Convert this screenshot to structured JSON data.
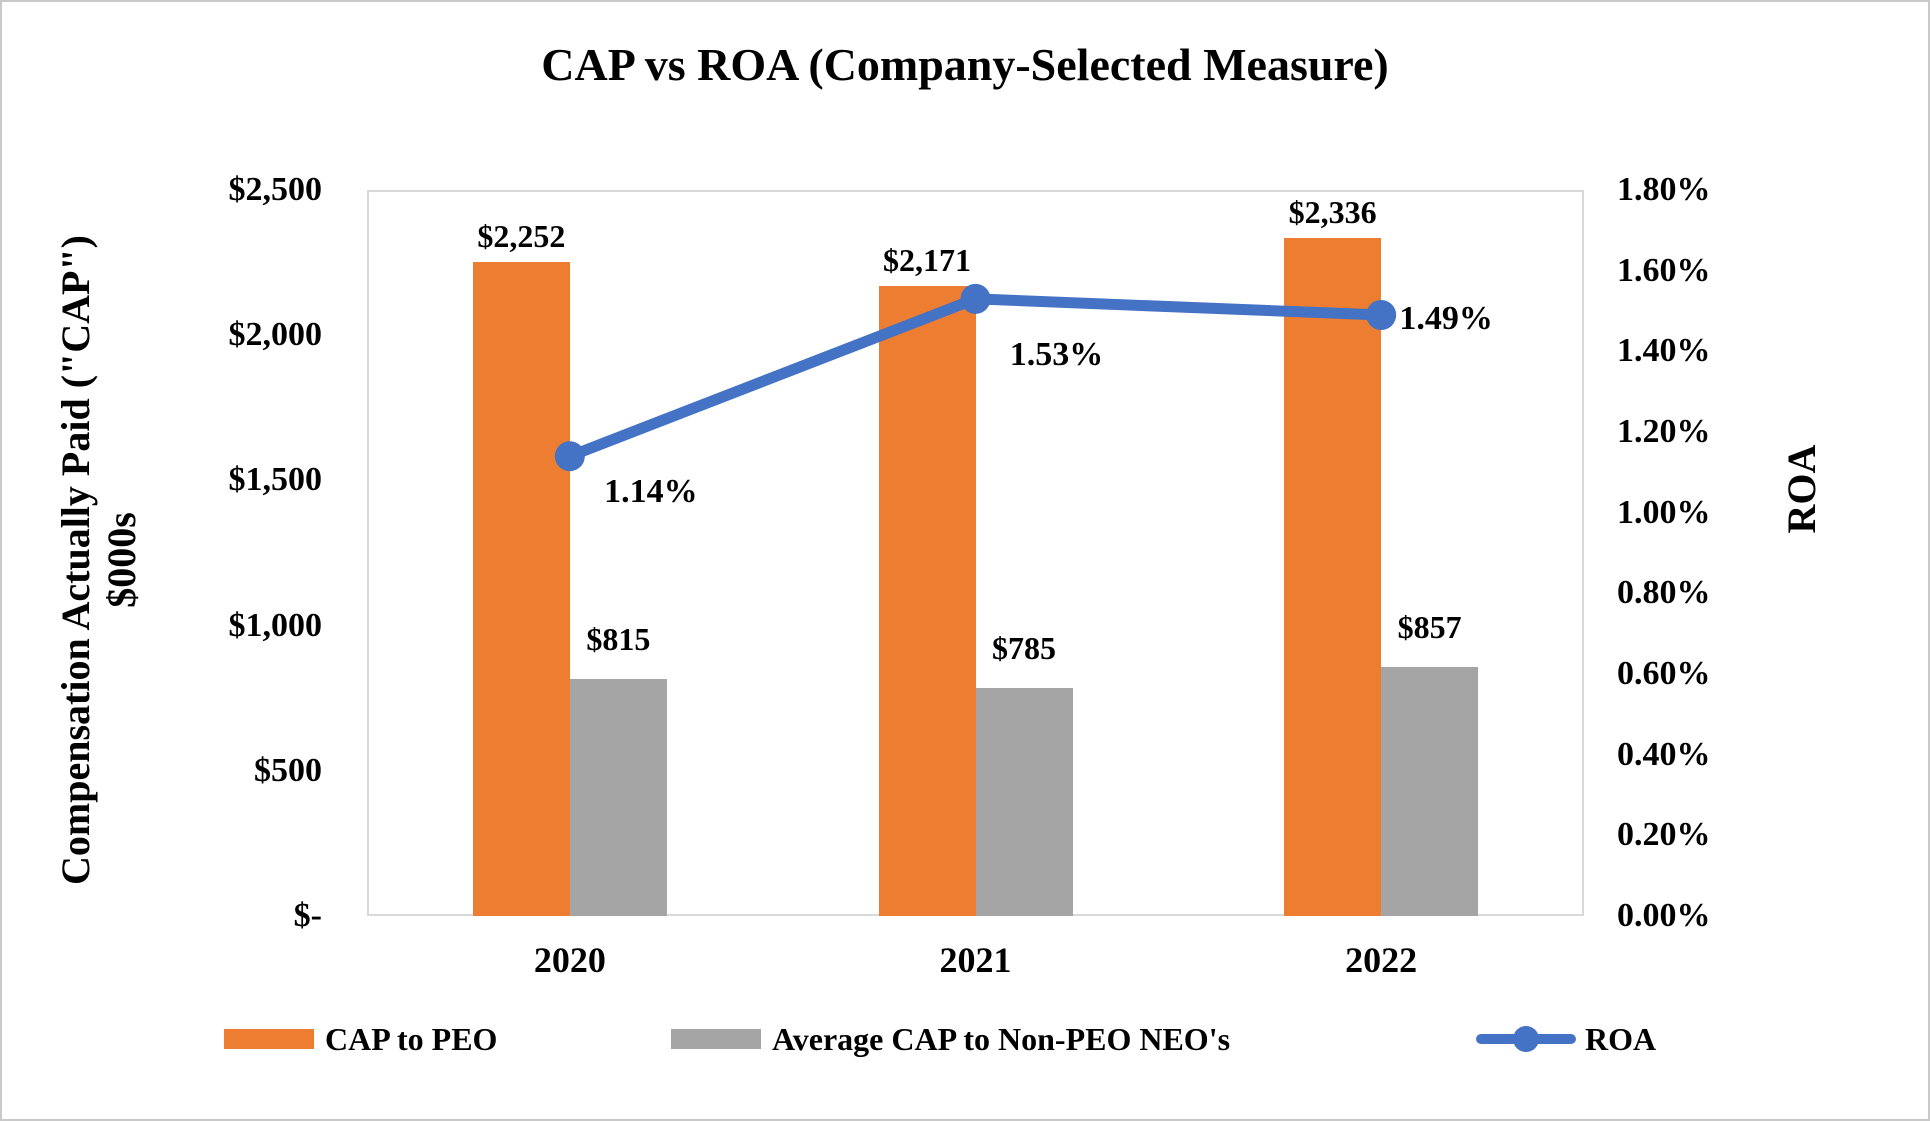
{
  "title": "CAP vs ROA (Company-Selected Measure)",
  "chart_data": {
    "type": "combo-bar-line",
    "categories": [
      "2020",
      "2021",
      "2022"
    ],
    "bar_series": [
      {
        "name": "CAP to PEO",
        "color": "#ED7D31",
        "values": [
          2252,
          2171,
          2336
        ],
        "data_labels": [
          "$2,252",
          "$2,171",
          "$2,336"
        ]
      },
      {
        "name": "Average CAP to Non-PEO NEO's",
        "color": "#A5A5A5",
        "values": [
          815,
          785,
          857
        ],
        "data_labels": [
          "$815",
          "$785",
          "$857"
        ]
      }
    ],
    "line_series": {
      "name": "ROA",
      "color": "#4472C4",
      "values_pct": [
        1.14,
        1.53,
        1.49
      ],
      "data_labels": [
        "1.14%",
        "1.53%",
        "1.49%"
      ]
    },
    "left_axis": {
      "title_line1": "Compensation Actually Paid (\"CAP\")",
      "title_line2": "$000s",
      "min": 0,
      "max": 2500,
      "ticks": [
        "$2,500",
        "$2,000",
        "$1,500",
        "$1,000",
        "$500",
        "$-"
      ]
    },
    "right_axis": {
      "title": "ROA",
      "min": 0,
      "max": 1.8,
      "ticks": [
        "1.80%",
        "1.60%",
        "1.40%",
        "1.20%",
        "1.00%",
        "0.80%",
        "0.60%",
        "0.40%",
        "0.20%",
        "0.00%"
      ]
    },
    "grid": false,
    "legend_position": "bottom",
    "plot_border_color": "#D9D9D9"
  },
  "legend": {
    "items": [
      {
        "label": "CAP to PEO",
        "swatch": "rect",
        "color": "#ED7D31"
      },
      {
        "label": "Average CAP to Non-PEO NEO's",
        "swatch": "rect",
        "color": "#A5A5A5"
      },
      {
        "label": "ROA",
        "swatch": "line-marker",
        "color": "#4472C4"
      }
    ]
  }
}
